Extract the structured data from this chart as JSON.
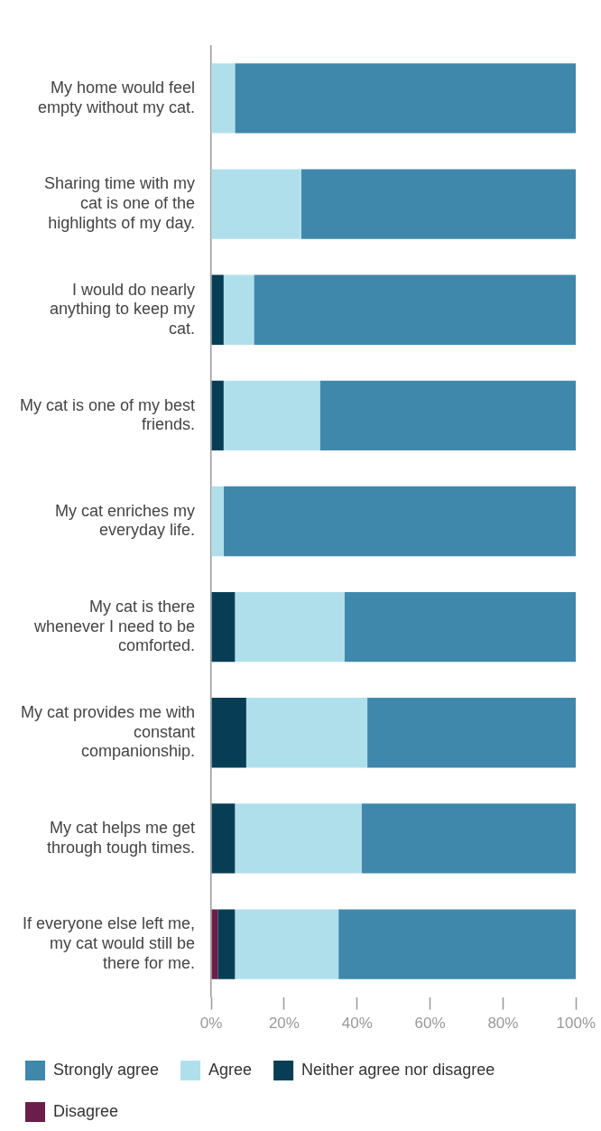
{
  "chart_data": {
    "type": "bar",
    "orientation": "horizontal",
    "stacked": true,
    "categories": [
      "My home would feel empty without my cat.",
      "Sharing time with my cat is one of the highlights of my day.",
      "I would do nearly anything to keep my cat.",
      "My cat is one of my best friends.",
      "My cat enriches my everyday life.",
      "My cat is there whenever I need to be comforted.",
      "My cat provides me with constant companionship.",
      "My cat helps me get through tough times.",
      "If everyone else left me, my cat would still be there for me."
    ],
    "series": [
      {
        "name": "Disagree",
        "color": "#6b1e4a",
        "values": [
          0,
          0,
          0,
          0,
          0,
          0,
          0,
          0,
          1.8
        ]
      },
      {
        "name": "Neither agree nor disagree",
        "color": "#073e55",
        "values": [
          0,
          0,
          3.4,
          3.4,
          0,
          6.5,
          9.6,
          6.5,
          4.7
        ]
      },
      {
        "name": "Agree",
        "color": "#b0dfec",
        "values": [
          6.5,
          24.7,
          8.3,
          26.4,
          3.4,
          30,
          33.2,
          34.7,
          28.4
        ]
      },
      {
        "name": "Strongly agree",
        "color": "#3f88ab",
        "values": [
          93.5,
          75.3,
          88.3,
          70.2,
          96.6,
          63.5,
          57.2,
          58.8,
          65.1
        ]
      }
    ],
    "xlim": [
      0,
      100
    ],
    "xticks": [
      {
        "value": 0,
        "label": "0%"
      },
      {
        "value": 20,
        "label": "20%"
      },
      {
        "value": 40,
        "label": "40%"
      },
      {
        "value": 60,
        "label": "60%"
      },
      {
        "value": 80,
        "label": "80%"
      },
      {
        "value": 100,
        "label": "100%"
      }
    ],
    "grid": false,
    "legend": "bottom"
  }
}
